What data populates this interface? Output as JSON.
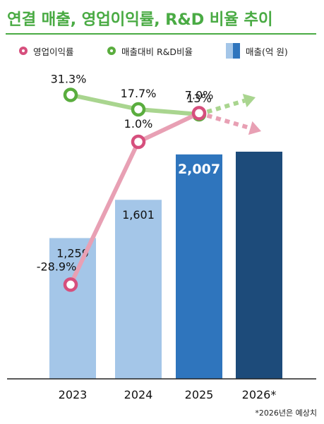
{
  "title": "연결 매출, 영업이익률, R&D 비율 추이",
  "legend": {
    "margin_label": "영업이익률",
    "rnd_label": "매출대비 R&D비율",
    "sales_label": "매출(억 원)"
  },
  "note": "*2026년은 예상치",
  "colors": {
    "title_green": "#4aab44",
    "margin_line": "#e8a0b4",
    "margin_marker": "#d64f7d",
    "rnd_line": "#a9d58f",
    "rnd_marker": "#5aad3e",
    "bar_light": "#a4c6e8",
    "bar_mid": "#2f75bd",
    "bar_dark": "#1d4b7a"
  },
  "chart_data": {
    "type": "bar",
    "categories": [
      "2023",
      "2024",
      "2025",
      "2026*"
    ],
    "series": [
      {
        "name": "매출(억 원)",
        "type": "bar",
        "values": [
          1259,
          1601,
          2007,
          null
        ],
        "value_labels": [
          "1,259",
          "1,601",
          "2,007",
          ""
        ]
      },
      {
        "name": "영업이익률",
        "type": "line",
        "values": [
          -28.9,
          1.0,
          7.0,
          null
        ],
        "value_labels": [
          "-28.9%",
          "1.0%",
          "7.0%"
        ],
        "trend_arrow": "up"
      },
      {
        "name": "매출대비 R&D비율",
        "type": "line",
        "values": [
          31.3,
          17.7,
          13.0,
          null
        ],
        "value_labels": [
          "31.3%",
          "17.7%",
          "13%"
        ],
        "trend_arrow": "up"
      }
    ],
    "forecast_category": "2026*",
    "legend_position": "top",
    "grid": false
  }
}
